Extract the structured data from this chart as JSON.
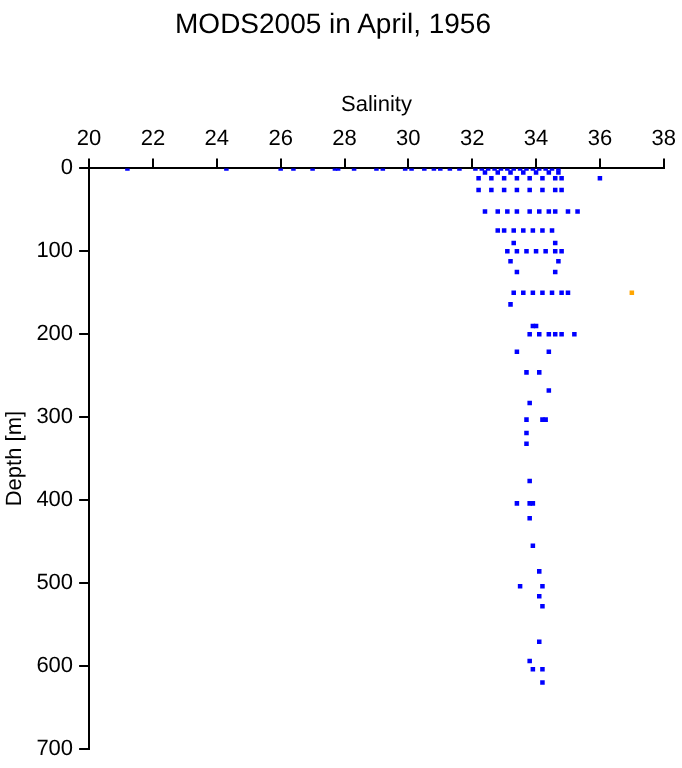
{
  "chart_data": {
    "type": "scatter",
    "title": "MODS2005 in April, 1956",
    "xlabel": "Salinity",
    "ylabel": "Depth [m]",
    "xlim": [
      20,
      38
    ],
    "xticks": [
      20,
      22,
      24,
      26,
      28,
      30,
      32,
      34,
      36,
      38
    ],
    "ylim": [
      700,
      0
    ],
    "yticks": [
      0,
      100,
      200,
      300,
      400,
      500,
      600,
      700
    ],
    "grid": false,
    "legend": false,
    "marker": "square",
    "series": [
      {
        "color": "#0000ff",
        "x": [
          21.2,
          24.3,
          26.0,
          26.4,
          27.0,
          27.7,
          27.8,
          28.3,
          29.0,
          29.2,
          29.9,
          30.1,
          30.5,
          30.8,
          31.0,
          31.3,
          31.6,
          32.1,
          32.3,
          32.5,
          32.7,
          32.9,
          33.1,
          33.3,
          33.5,
          33.7,
          33.9,
          34.1,
          34.3,
          34.5,
          34.7,
          32.4,
          32.8,
          33.2,
          33.6,
          34.0,
          34.4,
          34.7,
          32.2,
          32.6,
          33.0,
          33.4,
          33.8,
          34.2,
          34.6,
          34.8,
          36.0,
          32.2,
          32.6,
          33.0,
          33.4,
          33.8,
          34.2,
          34.6,
          34.8,
          32.4,
          32.8,
          33.1,
          33.4,
          33.8,
          34.1,
          34.4,
          34.6,
          35.0,
          35.3,
          32.8,
          33.0,
          33.3,
          33.6,
          33.9,
          34.2,
          34.5,
          33.3,
          34.6,
          33.1,
          33.4,
          33.7,
          34.0,
          34.3,
          34.6,
          34.8,
          33.2,
          34.7,
          33.4,
          34.6,
          33.3,
          33.6,
          33.9,
          34.2,
          34.5,
          34.8,
          35.0,
          33.2,
          33.9,
          34.0,
          33.8,
          34.1,
          34.4,
          34.6,
          34.8,
          35.2,
          33.4,
          34.4,
          33.7,
          34.1,
          34.4,
          33.8,
          33.7,
          34.2,
          34.3,
          33.7,
          33.7,
          33.8,
          33.4,
          33.8,
          33.9,
          33.8,
          33.9,
          34.1,
          33.5,
          34.2,
          34.1,
          34.2,
          34.1,
          33.8,
          33.9,
          34.2,
          34.2
        ],
        "values": [
          0,
          0,
          0,
          0,
          0,
          0,
          0,
          0,
          0,
          0,
          0,
          0,
          0,
          0,
          0,
          0,
          0,
          0,
          0,
          0,
          0,
          0,
          0,
          0,
          0,
          0,
          0,
          0,
          0,
          0,
          0,
          5,
          5,
          5,
          5,
          5,
          5,
          5,
          12,
          12,
          12,
          12,
          12,
          12,
          12,
          12,
          12,
          26,
          26,
          26,
          26,
          26,
          26,
          26,
          26,
          52,
          52,
          52,
          52,
          52,
          52,
          52,
          52,
          52,
          52,
          75,
          75,
          75,
          75,
          75,
          75,
          75,
          90,
          90,
          100,
          100,
          100,
          100,
          100,
          100,
          100,
          112,
          112,
          125,
          125,
          150,
          150,
          150,
          150,
          150,
          150,
          150,
          164,
          190,
          190,
          200,
          200,
          200,
          200,
          200,
          200,
          221,
          221,
          246,
          246,
          268,
          283,
          303,
          303,
          303,
          319,
          332,
          377,
          404,
          404,
          404,
          422,
          455,
          486,
          504,
          504,
          516,
          528,
          571,
          594,
          604,
          604,
          620
        ]
      },
      {
        "color": "#ffa500",
        "x": [
          37.0
        ],
        "values": [
          150
        ]
      }
    ]
  }
}
